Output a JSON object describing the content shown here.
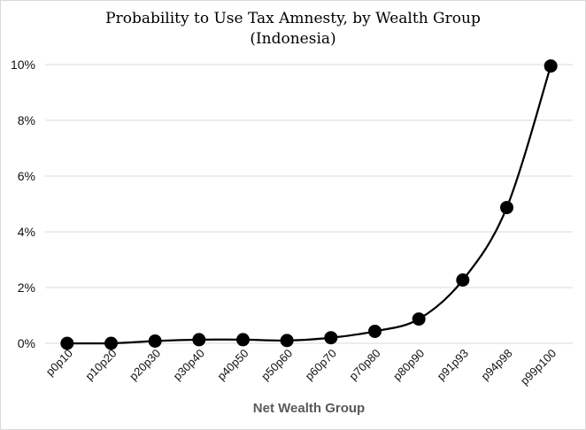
{
  "chart_data": {
    "type": "line",
    "title": "Probability to Use Tax Amnesty, by Wealth Group",
    "subtitle": "(Indonesia)",
    "xlabel": "Net Wealth Group",
    "ylabel": "",
    "categories": [
      "p0p10",
      "p10p20",
      "p20p30",
      "p30p40",
      "p40p50",
      "p50p60",
      "p60p70",
      "p70p80",
      "p80p90",
      "p91p93",
      "p94p98",
      "p99p100"
    ],
    "series": [
      {
        "name": "Probability to Use Tax Amnesty",
        "values": [
          0.0,
          0.0,
          0.08,
          0.13,
          0.13,
          0.1,
          0.2,
          0.43,
          0.87,
          2.27,
          4.87,
          9.95
        ]
      }
    ],
    "ylim": [
      0,
      10
    ],
    "yticks": [
      0,
      2,
      4,
      6,
      8,
      10
    ],
    "ytick_labels": [
      "0%",
      "2%",
      "4%",
      "6%",
      "8%",
      "10%"
    ],
    "grid": true,
    "legend": "none",
    "colors": {
      "line": "#000000",
      "marker": "#000000",
      "grid": "#d9d9d9",
      "axis_label": "#595959"
    }
  }
}
